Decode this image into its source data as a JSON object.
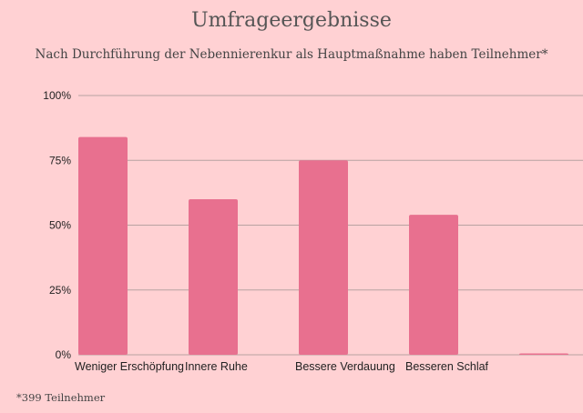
{
  "chart_data": {
    "type": "bar",
    "title": "Umfrageergebnisse",
    "subtitle": "Nach Durchführung der Nebennierenkur als Hauptmaßnahme haben Teilnehmer*",
    "categories": [
      "Weniger Erschöpfung",
      "Innere Ruhe",
      "Bessere Verdauung",
      "Besseren Schlaf",
      ""
    ],
    "values": [
      84,
      60,
      75,
      54,
      0
    ],
    "ylim": [
      0,
      100
    ],
    "yticks": [
      0,
      25,
      50,
      75,
      100
    ],
    "ytick_labels": [
      "0%",
      "25%",
      "50%",
      "75%",
      "100%"
    ],
    "xlabel": "",
    "ylabel": "",
    "grid": true,
    "bar_color": "#e8708f",
    "grid_color": "#b7a2a2"
  },
  "footnote": "*399 Teilnehmer"
}
